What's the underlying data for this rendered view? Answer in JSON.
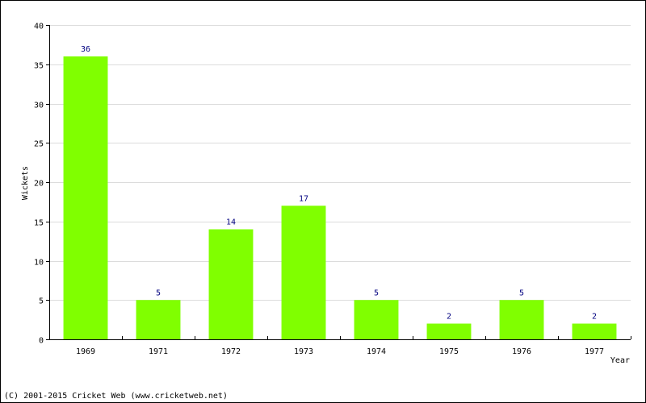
{
  "chart_data": {
    "type": "bar",
    "categories": [
      "1969",
      "1971",
      "1972",
      "1973",
      "1974",
      "1975",
      "1976",
      "1977"
    ],
    "values": [
      36,
      5,
      14,
      17,
      5,
      2,
      5,
      2
    ],
    "xlabel": "Year",
    "ylabel": "Wickets",
    "ylim": [
      0,
      40
    ],
    "yticks": [
      0,
      5,
      10,
      15,
      20,
      25,
      30,
      35,
      40
    ],
    "grid": true,
    "data_labels": true,
    "bar_color": "#80ff00",
    "label_color": "#000080"
  },
  "footer": {
    "copyright": "(C) 2001-2015 Cricket Web (www.cricketweb.net)"
  }
}
